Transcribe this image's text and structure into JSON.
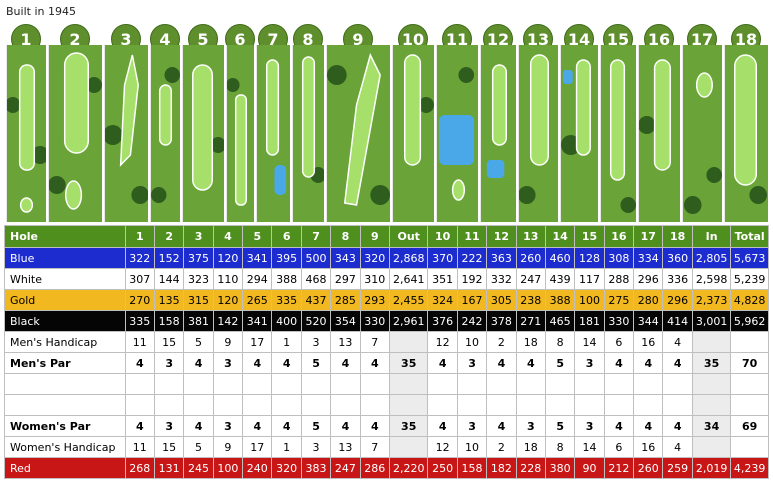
{
  "built": "Built in 1945",
  "holes": [
    "1",
    "2",
    "3",
    "4",
    "5",
    "6",
    "7",
    "8",
    "9",
    "10",
    "11",
    "12",
    "13",
    "14",
    "15",
    "16",
    "17",
    "18"
  ],
  "table": {
    "header": [
      "Hole",
      "1",
      "2",
      "3",
      "4",
      "5",
      "6",
      "7",
      "8",
      "9",
      "Out",
      "10",
      "11",
      "12",
      "13",
      "14",
      "15",
      "16",
      "17",
      "18",
      "In",
      "Total"
    ],
    "rows": [
      {
        "kind": "blue",
        "cells": [
          "Blue",
          "322",
          "152",
          "375",
          "120",
          "341",
          "395",
          "500",
          "343",
          "320",
          "2,868",
          "370",
          "222",
          "363",
          "260",
          "460",
          "128",
          "308",
          "334",
          "360",
          "2,805",
          "5,673"
        ]
      },
      {
        "kind": "white",
        "cells": [
          "White",
          "307",
          "144",
          "323",
          "110",
          "294",
          "388",
          "468",
          "297",
          "310",
          "2,641",
          "351",
          "192",
          "332",
          "247",
          "439",
          "117",
          "288",
          "296",
          "336",
          "2,598",
          "5,239"
        ]
      },
      {
        "kind": "gold",
        "cells": [
          "Gold",
          "270",
          "135",
          "315",
          "120",
          "265",
          "335",
          "437",
          "285",
          "293",
          "2,455",
          "324",
          "167",
          "305",
          "238",
          "388",
          "100",
          "275",
          "280",
          "296",
          "2,373",
          "4,828"
        ]
      },
      {
        "kind": "black",
        "cells": [
          "Black",
          "335",
          "158",
          "381",
          "142",
          "341",
          "400",
          "520",
          "354",
          "330",
          "2,961",
          "376",
          "242",
          "378",
          "271",
          "465",
          "181",
          "330",
          "344",
          "414",
          "3,001",
          "5,962"
        ]
      },
      {
        "kind": "hc",
        "cells": [
          "Men's Handicap",
          "11",
          "15",
          "5",
          "9",
          "17",
          "1",
          "3",
          "13",
          "7",
          "",
          "12",
          "10",
          "2",
          "18",
          "8",
          "14",
          "6",
          "16",
          "4",
          "",
          ""
        ]
      },
      {
        "kind": "par",
        "cells": [
          "Men's Par",
          "4",
          "3",
          "4",
          "3",
          "4",
          "4",
          "5",
          "4",
          "4",
          "35",
          "4",
          "3",
          "4",
          "4",
          "5",
          "3",
          "4",
          "4",
          "4",
          "35",
          "70"
        ]
      },
      {
        "kind": "blank",
        "cells": [
          "",
          "",
          "",
          "",
          "",
          "",
          "",
          "",
          "",
          "",
          "",
          "",
          "",
          "",
          "",
          "",
          "",
          "",
          "",
          "",
          "",
          ""
        ]
      },
      {
        "kind": "blank",
        "cells": [
          "",
          "",
          "",
          "",
          "",
          "",
          "",
          "",
          "",
          "",
          "",
          "",
          "",
          "",
          "",
          "",
          "",
          "",
          "",
          "",
          "",
          ""
        ]
      },
      {
        "kind": "par",
        "cells": [
          "Women's Par",
          "4",
          "3",
          "4",
          "3",
          "4",
          "4",
          "5",
          "4",
          "4",
          "35",
          "4",
          "3",
          "4",
          "3",
          "5",
          "3",
          "4",
          "4",
          "4",
          "34",
          "69"
        ]
      },
      {
        "kind": "hc",
        "cells": [
          "Women's Handicap",
          "11",
          "15",
          "5",
          "9",
          "17",
          "1",
          "3",
          "13",
          "7",
          "",
          "12",
          "10",
          "2",
          "18",
          "8",
          "14",
          "6",
          "16",
          "4",
          "",
          ""
        ]
      },
      {
        "kind": "red",
        "cells": [
          "Red",
          "268",
          "131",
          "245",
          "100",
          "240",
          "320",
          "383",
          "247",
          "286",
          "2,220",
          "250",
          "158",
          "182",
          "228",
          "380",
          "90",
          "212",
          "260",
          "259",
          "2,019",
          "4,239"
        ]
      }
    ]
  }
}
